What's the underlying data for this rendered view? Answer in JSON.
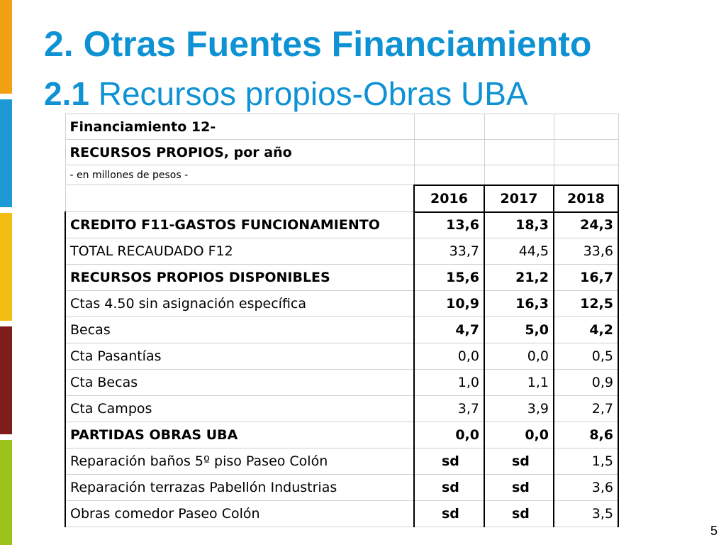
{
  "slide": {
    "title_number": "2.",
    "title_text": "Otras Fuentes Financiamiento",
    "subtitle_number": "2.1",
    "subtitle_text": "Recursos propios-Obras UBA",
    "page_number": "5"
  },
  "colors": {
    "title": "#0e92d4",
    "bars": [
      "#f0a010",
      "#1d9ad6",
      "#f2be12",
      "#7f1d1d",
      "#9bc31a"
    ]
  },
  "table": {
    "header_lines": [
      "Financiamiento 12-",
      "RECURSOS PROPIOS, por año",
      " - en millones de pesos -"
    ],
    "years": [
      "2016",
      "2017",
      "2018"
    ],
    "rows": [
      {
        "label": "CREDITO F11-GASTOS FUNCIONAMIENTO",
        "values": [
          "13,6",
          "18,3",
          "24,3"
        ],
        "bold": true
      },
      {
        "label": "TOTAL RECAUDADO F12",
        "values": [
          "33,7",
          "44,5",
          "33,6"
        ],
        "bold": false
      },
      {
        "label": "RECURSOS PROPIOS DISPONIBLES",
        "values": [
          "15,6",
          "21,2",
          "16,7"
        ],
        "bold": true
      },
      {
        "label": "Ctas 4.50 sin asignación específica",
        "values": [
          "10,9",
          "16,3",
          "12,5"
        ],
        "bold": false,
        "bold_values": true
      },
      {
        "label": "Becas",
        "values": [
          "4,7",
          "5,0",
          "4,2"
        ],
        "bold": false,
        "bold_values": true
      },
      {
        "label": "Cta Pasantías",
        "values": [
          "0,0",
          "0,0",
          "0,5"
        ],
        "bold": false
      },
      {
        "label": "Cta Becas",
        "values": [
          "1,0",
          "1,1",
          "0,9"
        ],
        "bold": false
      },
      {
        "label": "Cta Campos",
        "values": [
          "3,7",
          "3,9",
          "2,7"
        ],
        "bold": false
      },
      {
        "label": "PARTIDAS OBRAS UBA",
        "values": [
          "0,0",
          "0,0",
          "8,6"
        ],
        "bold": true
      },
      {
        "label": "Reparación baños 5º piso Paseo Colón",
        "values": [
          "sd",
          "sd",
          "1,5"
        ],
        "bold": false
      },
      {
        "label": "Reparación terrazas Pabellón Industrias",
        "values": [
          "sd",
          "sd",
          "3,6"
        ],
        "bold": false
      },
      {
        "label": "Obras comedor Paseo Colón",
        "values": [
          "sd",
          "sd",
          "3,5"
        ],
        "bold": false
      }
    ]
  }
}
